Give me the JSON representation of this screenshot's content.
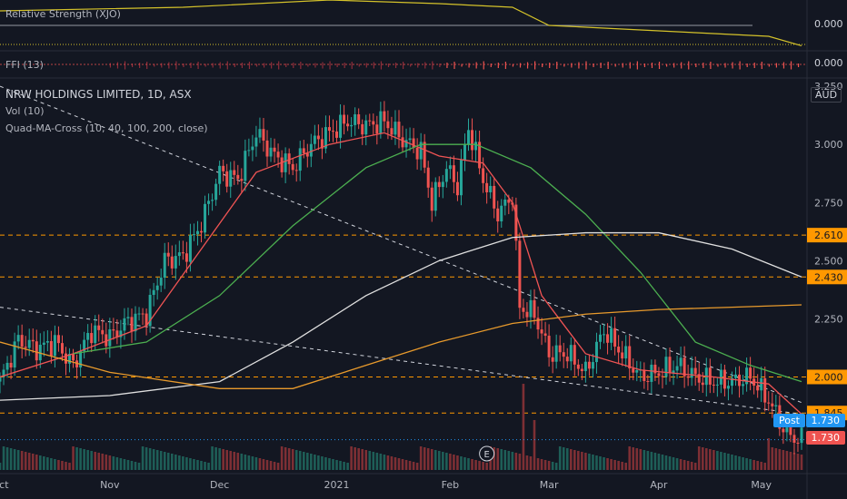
{
  "panes": {
    "relative_strength": {
      "label": "Relative Strength (XJO)",
      "value": "0.000"
    },
    "ffi": {
      "label": "FFI (13)",
      "value": "0.000"
    },
    "main": {
      "title": "NRW HOLDINGS LIMITED, 1D, ASX",
      "indicators": [
        "Vol (10)",
        "Quad-MA-Cross (10, 40, 100, 200, close)"
      ],
      "currency": "AUD"
    }
  },
  "badges": {
    "post_label": "Post",
    "post_value": "1.730",
    "last_value": "1.730"
  },
  "colors": {
    "bg": "#131722",
    "up": "#26a69a",
    "down": "#ef5350",
    "ma10": "#f05454",
    "ma40": "#4caf50",
    "ma100": "#e0e0e0",
    "ma200": "#e89a2c",
    "level": "#ff9800",
    "rs": "#d4c22a"
  },
  "chart_data": {
    "type": "candlestick",
    "y_ticks": [
      2.25,
      2.5,
      2.75,
      3.0,
      3.25
    ],
    "y_tick_labels": [
      "2.250",
      "2.500",
      "2.750",
      "3.000",
      "3.250"
    ],
    "ylim": [
      1.6,
      3.27
    ],
    "x_tick_labels": [
      "Oct",
      "Nov",
      "Dec",
      "2021",
      "Feb",
      "Mar",
      "Apr",
      "May"
    ],
    "x_tick_days": [
      0,
      30,
      60,
      92,
      123,
      150,
      180,
      208
    ],
    "n_days": 220,
    "horizontal_levels": [
      {
        "value": 2.61,
        "label": "2.610"
      },
      {
        "value": 2.43,
        "label": "2.430"
      },
      {
        "value": 2.0,
        "label": "2.000"
      },
      {
        "value": 1.845,
        "label": "1.845"
      }
    ],
    "close_path": [
      [
        0,
        1.98
      ],
      [
        5,
        2.16
      ],
      [
        10,
        2.12
      ],
      [
        15,
        2.15
      ],
      [
        20,
        2.05
      ],
      [
        25,
        2.2
      ],
      [
        30,
        2.17
      ],
      [
        35,
        2.24
      ],
      [
        40,
        2.27
      ],
      [
        45,
        2.5
      ],
      [
        50,
        2.52
      ],
      [
        55,
        2.66
      ],
      [
        60,
        2.88
      ],
      [
        65,
        2.85
      ],
      [
        70,
        3.05
      ],
      [
        75,
        2.95
      ],
      [
        80,
        2.9
      ],
      [
        85,
        3.0
      ],
      [
        90,
        3.05
      ],
      [
        95,
        3.1
      ],
      [
        100,
        3.08
      ],
      [
        105,
        3.1
      ],
      [
        110,
        3.02
      ],
      [
        115,
        2.97
      ],
      [
        118,
        2.75
      ],
      [
        122,
        2.9
      ],
      [
        125,
        2.82
      ],
      [
        128,
        3.07
      ],
      [
        132,
        2.85
      ],
      [
        136,
        2.7
      ],
      [
        140,
        2.78
      ],
      [
        142,
        2.3
      ],
      [
        146,
        2.27
      ],
      [
        150,
        2.1
      ],
      [
        155,
        2.1
      ],
      [
        160,
        2.02
      ],
      [
        165,
        2.2
      ],
      [
        170,
        2.1
      ],
      [
        175,
        2.0
      ],
      [
        180,
        2.02
      ],
      [
        185,
        2.05
      ],
      [
        190,
        2.0
      ],
      [
        195,
        1.98
      ],
      [
        200,
        1.98
      ],
      [
        205,
        2.0
      ],
      [
        210,
        1.9
      ],
      [
        215,
        1.75
      ],
      [
        219,
        1.73
      ]
    ],
    "ma_series": [
      {
        "name": "MA10",
        "points": [
          [
            0,
            2.0
          ],
          [
            20,
            2.1
          ],
          [
            40,
            2.22
          ],
          [
            55,
            2.55
          ],
          [
            70,
            2.88
          ],
          [
            90,
            3.0
          ],
          [
            105,
            3.05
          ],
          [
            120,
            2.95
          ],
          [
            132,
            2.92
          ],
          [
            140,
            2.75
          ],
          [
            148,
            2.35
          ],
          [
            160,
            2.1
          ],
          [
            175,
            2.03
          ],
          [
            195,
            2.0
          ],
          [
            210,
            1.97
          ],
          [
            219,
            1.84
          ]
        ]
      },
      {
        "name": "MA40",
        "points": [
          [
            20,
            2.1
          ],
          [
            40,
            2.15
          ],
          [
            60,
            2.35
          ],
          [
            80,
            2.65
          ],
          [
            100,
            2.9
          ],
          [
            115,
            3.0
          ],
          [
            130,
            3.0
          ],
          [
            145,
            2.9
          ],
          [
            160,
            2.7
          ],
          [
            175,
            2.45
          ],
          [
            190,
            2.15
          ],
          [
            205,
            2.05
          ],
          [
            219,
            1.98
          ]
        ]
      },
      {
        "name": "MA100",
        "points": [
          [
            0,
            1.9
          ],
          [
            30,
            1.92
          ],
          [
            60,
            1.98
          ],
          [
            80,
            2.15
          ],
          [
            100,
            2.35
          ],
          [
            120,
            2.5
          ],
          [
            140,
            2.6
          ],
          [
            160,
            2.62
          ],
          [
            180,
            2.62
          ],
          [
            200,
            2.55
          ],
          [
            219,
            2.43
          ]
        ]
      },
      {
        "name": "MA200",
        "points": [
          [
            0,
            2.15
          ],
          [
            30,
            2.02
          ],
          [
            60,
            1.95
          ],
          [
            80,
            1.95
          ],
          [
            100,
            2.05
          ],
          [
            120,
            2.15
          ],
          [
            140,
            2.23
          ],
          [
            160,
            2.27
          ],
          [
            180,
            2.29
          ],
          [
            200,
            2.3
          ],
          [
            219,
            2.31
          ]
        ]
      }
    ],
    "trendlines": [
      {
        "from": [
          0,
          3.25
        ],
        "to": [
          219,
          1.89
        ]
      },
      {
        "from": [
          0,
          2.3
        ],
        "to": [
          219,
          1.84
        ]
      }
    ],
    "rs_path": [
      [
        0,
        0.5
      ],
      [
        50,
        0.55
      ],
      [
        90,
        0.65
      ],
      [
        120,
        0.6
      ],
      [
        140,
        0.55
      ],
      [
        150,
        0.3
      ],
      [
        170,
        0.25
      ],
      [
        190,
        0.2
      ],
      [
        210,
        0.15
      ],
      [
        219,
        0.02
      ]
    ]
  }
}
